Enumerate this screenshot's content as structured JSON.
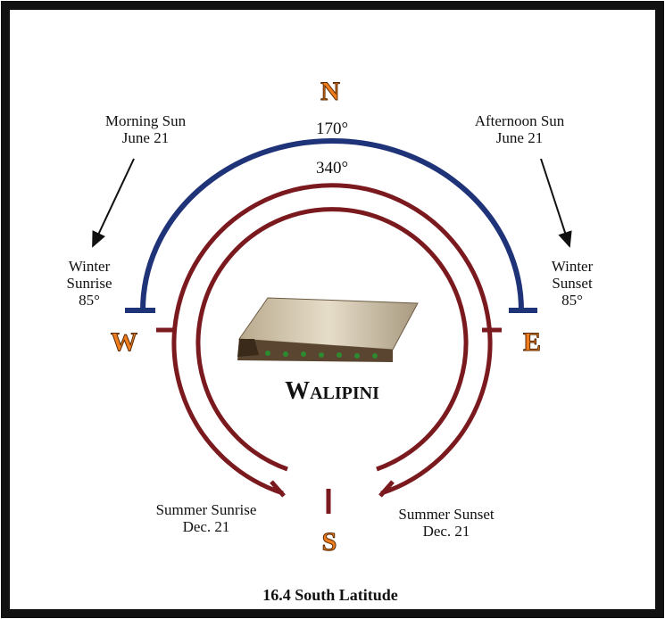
{
  "directions": {
    "north": "N",
    "south": "S",
    "east": "E",
    "west": "W"
  },
  "morning_sun": {
    "title": "Morning Sun",
    "date": "June 21"
  },
  "afternoon_sun": {
    "title": "Afternoon Sun",
    "date": "June 21"
  },
  "angles": {
    "outer": "170°",
    "inner": "340°"
  },
  "winter_sunrise": {
    "line1": "Winter",
    "line2": "Sunrise",
    "angle": "85°"
  },
  "winter_sunset": {
    "line1": "Winter",
    "line2": "Sunset",
    "angle": "85°"
  },
  "summer_sunrise": {
    "title": "Summer Sunrise",
    "date": "Dec. 21"
  },
  "summer_sunset": {
    "title": "Summer Sunset",
    "date": "Dec. 21"
  },
  "center_label": "Walipini",
  "footer": "16.4 South Latitude"
}
